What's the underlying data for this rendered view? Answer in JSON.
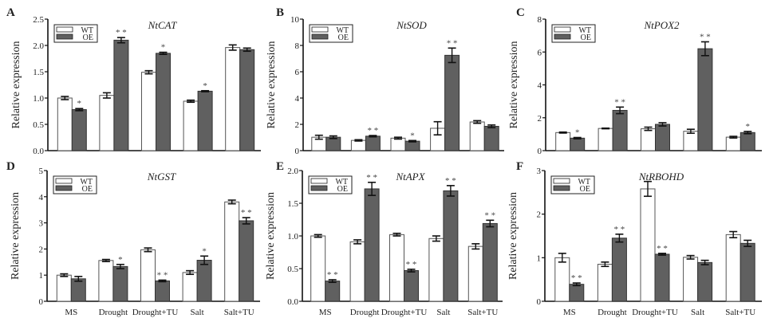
{
  "figure": {
    "wt_color": "#ffffff",
    "oe_color": "#606060",
    "axis_color": "#111111"
  },
  "chart_data": [
    {
      "type": "bar",
      "panel": "A",
      "title": "NtCAT",
      "xlabel": "",
      "ylabel": "Relative expression",
      "ylim": [
        0,
        2.5
      ],
      "yticks": [
        0,
        0.5,
        1.0,
        1.5,
        2.0,
        2.5
      ],
      "ytick_labels": [
        "0.0",
        "0.5",
        "1.0",
        "1.5",
        "2.0",
        "2.5"
      ],
      "categories": [
        "MS",
        "Drought",
        "Drought+TU",
        "Salt",
        "Salt+TU"
      ],
      "show_category_labels": false,
      "legend": "top-left",
      "series": [
        {
          "name": "WT",
          "values": [
            1.0,
            1.05,
            1.49,
            0.94,
            1.96
          ],
          "errors": [
            0.03,
            0.05,
            0.03,
            0.02,
            0.05
          ],
          "sig": [
            "",
            "",
            "",
            "",
            ""
          ]
        },
        {
          "name": "OE",
          "values": [
            0.78,
            2.1,
            1.85,
            1.13,
            1.92
          ],
          "errors": [
            0.02,
            0.05,
            0.02,
            0.01,
            0.03
          ],
          "sig": [
            "*",
            "**",
            "*",
            "*",
            ""
          ]
        }
      ]
    },
    {
      "type": "bar",
      "panel": "B",
      "title": "NtSOD",
      "xlabel": "",
      "ylabel": "Relative expression",
      "ylim": [
        0,
        10
      ],
      "yticks": [
        0,
        2,
        4,
        6,
        8,
        10
      ],
      "ytick_labels": [
        "0",
        "2",
        "4",
        "6",
        "8",
        "10"
      ],
      "categories": [
        "MS",
        "Drought",
        "Drought+TU",
        "Salt",
        "Salt+TU"
      ],
      "show_category_labels": false,
      "legend": "top-left",
      "series": [
        {
          "name": "WT",
          "values": [
            1.02,
            0.78,
            0.95,
            1.7,
            2.18
          ],
          "errors": [
            0.15,
            0.05,
            0.07,
            0.5,
            0.1
          ],
          "sig": [
            "",
            "",
            "",
            "",
            ""
          ]
        },
        {
          "name": "OE",
          "values": [
            1.02,
            1.1,
            0.72,
            7.25,
            1.85
          ],
          "errors": [
            0.1,
            0.05,
            0.05,
            0.55,
            0.1
          ],
          "sig": [
            "",
            "**",
            "*",
            "**",
            ""
          ]
        }
      ]
    },
    {
      "type": "bar",
      "panel": "C",
      "title": "NtPOX2",
      "xlabel": "",
      "ylabel": "Relative expression",
      "ylim": [
        0,
        8
      ],
      "yticks": [
        0,
        2,
        4,
        6,
        8
      ],
      "ytick_labels": [
        "0",
        "2",
        "4",
        "6",
        "8"
      ],
      "categories": [
        "MS",
        "Drought",
        "Drought+TU",
        "Salt",
        "Salt+TU"
      ],
      "show_category_labels": false,
      "legend": "top-left",
      "series": [
        {
          "name": "WT",
          "values": [
            1.1,
            1.35,
            1.33,
            1.18,
            0.82
          ],
          "errors": [
            0.03,
            0.02,
            0.1,
            0.12,
            0.05
          ],
          "sig": [
            "",
            "",
            "",
            "",
            ""
          ]
        },
        {
          "name": "OE",
          "values": [
            0.76,
            2.45,
            1.6,
            6.2,
            1.1
          ],
          "errors": [
            0.04,
            0.2,
            0.1,
            0.42,
            0.07
          ],
          "sig": [
            "*",
            "**",
            "",
            "**",
            "*"
          ]
        }
      ]
    },
    {
      "type": "bar",
      "panel": "D",
      "title": "NtGST",
      "xlabel": "",
      "ylabel": "Relative expression",
      "ylim": [
        0,
        5
      ],
      "yticks": [
        0,
        1,
        2,
        3,
        4,
        5
      ],
      "ytick_labels": [
        "0",
        "1",
        "2",
        "3",
        "4",
        "5"
      ],
      "categories": [
        "MS",
        "Drought",
        "Drought+TU",
        "Salt",
        "Salt+TU"
      ],
      "show_category_labels": true,
      "legend": "top-left",
      "series": [
        {
          "name": "WT",
          "values": [
            1.0,
            1.56,
            1.97,
            1.1,
            3.8
          ],
          "errors": [
            0.05,
            0.04,
            0.07,
            0.07,
            0.07
          ],
          "sig": [
            "",
            "",
            "",
            "",
            ""
          ]
        },
        {
          "name": "OE",
          "values": [
            0.86,
            1.33,
            0.78,
            1.57,
            3.08
          ],
          "errors": [
            0.09,
            0.08,
            0.03,
            0.16,
            0.12
          ],
          "sig": [
            "",
            "*",
            "**",
            "*",
            "**"
          ]
        }
      ]
    },
    {
      "type": "bar",
      "panel": "E",
      "title": "NtAPX",
      "xlabel": "",
      "ylabel": "Relative expression",
      "ylim": [
        0,
        2.0
      ],
      "yticks": [
        0,
        0.5,
        1.0,
        1.5,
        2.0
      ],
      "ytick_labels": [
        "0.0",
        "0.5",
        "1.0",
        "1.5",
        "2.0"
      ],
      "categories": [
        "MS",
        "Drought",
        "Drought+TU",
        "Salt",
        "Salt+TU"
      ],
      "show_category_labels": true,
      "legend": "top-left",
      "series": [
        {
          "name": "WT",
          "values": [
            1.0,
            0.91,
            1.02,
            0.96,
            0.84
          ],
          "errors": [
            0.02,
            0.03,
            0.02,
            0.04,
            0.04
          ],
          "sig": [
            "",
            "",
            "",
            "",
            ""
          ]
        },
        {
          "name": "OE",
          "values": [
            0.31,
            1.72,
            0.47,
            1.69,
            1.19
          ],
          "errors": [
            0.02,
            0.1,
            0.02,
            0.08,
            0.05
          ],
          "sig": [
            "**",
            "**",
            "**",
            "**",
            "**"
          ]
        }
      ]
    },
    {
      "type": "bar",
      "panel": "F",
      "title": "NtRBOHD",
      "xlabel": "",
      "ylabel": "Relative expression",
      "ylim": [
        0,
        3
      ],
      "yticks": [
        0,
        1,
        2,
        3
      ],
      "ytick_labels": [
        "0",
        "1",
        "2",
        "3"
      ],
      "categories": [
        "MS",
        "Drought",
        "Drought+TU",
        "Salt",
        "Salt+TU"
      ],
      "show_category_labels": true,
      "legend": "top-left",
      "series": [
        {
          "name": "WT",
          "values": [
            1.0,
            0.85,
            2.58,
            1.01,
            1.53
          ],
          "errors": [
            0.1,
            0.05,
            0.17,
            0.04,
            0.07
          ],
          "sig": [
            "",
            "",
            "",
            "",
            ""
          ]
        },
        {
          "name": "OE",
          "values": [
            0.39,
            1.45,
            1.08,
            0.89,
            1.33
          ],
          "errors": [
            0.03,
            0.09,
            0.02,
            0.05,
            0.07
          ],
          "sig": [
            "**",
            "**",
            "**",
            "",
            ""
          ]
        }
      ]
    }
  ]
}
